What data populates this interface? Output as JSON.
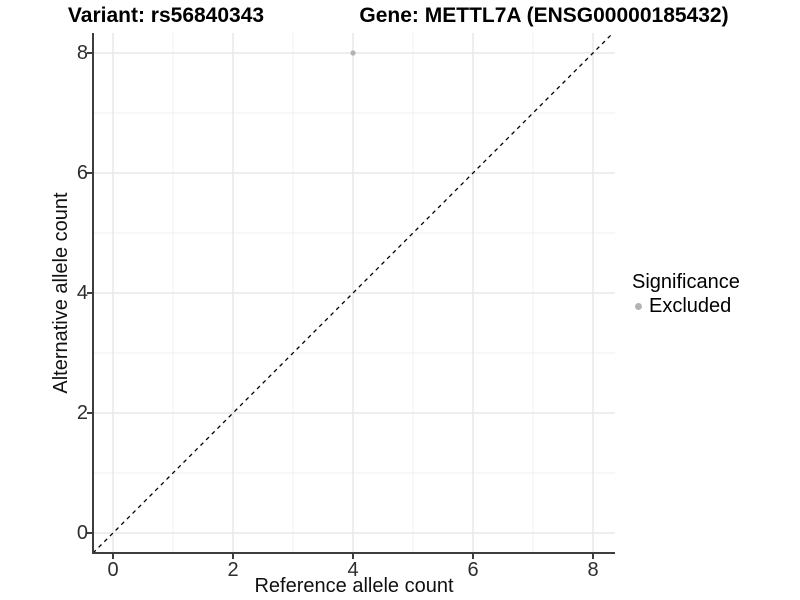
{
  "figure": {
    "title_left": "Variant: rs56840343",
    "title_right": "Gene: METTL7A (ENSG00000185432)"
  },
  "chart_data": {
    "type": "scatter",
    "title": "Variant: rs56840343",
    "subtitle": "Gene: METTL7A (ENSG00000185432)",
    "xlabel": "Reference allele count",
    "ylabel": "Alternative allele count",
    "xlim": [
      -0.35,
      8.37
    ],
    "ylim": [
      -0.35,
      8.34
    ],
    "x_ticks": [
      0,
      2,
      4,
      6,
      8
    ],
    "y_ticks": [
      0,
      2,
      4,
      6,
      8
    ],
    "x_minor_ticks": [
      1,
      3,
      5,
      7
    ],
    "y_minor_ticks": [
      1,
      3,
      5,
      7
    ],
    "grid": true,
    "series": [
      {
        "name": "Excluded",
        "marker": "circle",
        "color": "#b3b3b3",
        "points": [
          {
            "x": 4,
            "y": 8
          }
        ]
      }
    ],
    "reference_line": {
      "kind": "identity y=x",
      "style": "dashed",
      "color": "#000000"
    },
    "legend": {
      "title": "Significance",
      "position": "right",
      "entries": [
        {
          "label": "Excluded",
          "color": "#b3b3b3",
          "marker": "circle"
        }
      ]
    }
  },
  "colors": {
    "background": "#ffffff",
    "grid_major": "#e3e3e3",
    "grid_minor": "#f1f1f1",
    "axis_line": "#3d3d3d",
    "tick_label": "#2e2e2e",
    "point": "#b3b3b3",
    "dashed_line": "#000000"
  }
}
